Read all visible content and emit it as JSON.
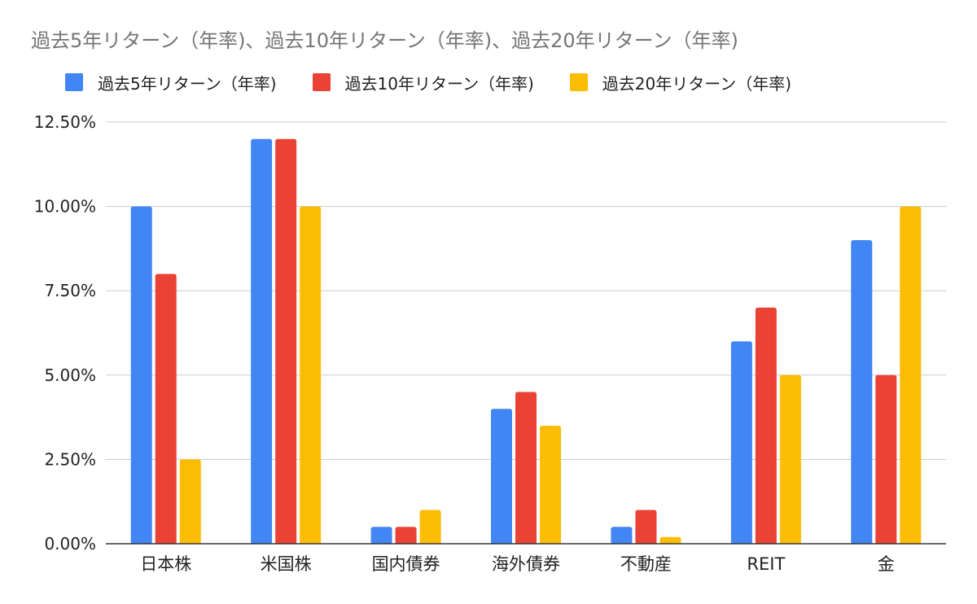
{
  "chart_data": {
    "type": "bar",
    "title": "過去5年リターン（年率)、過去10年リターン（年率)、過去20年リターン（年率)",
    "categories": [
      "日本株",
      "米国株",
      "国内債券",
      "海外債券",
      "不動産",
      "REIT",
      "金"
    ],
    "series": [
      {
        "name": "過去5年リターン（年率)",
        "color": "#4285F4",
        "values": [
          10.0,
          12.0,
          0.5,
          4.0,
          0.5,
          6.0,
          9.0
        ]
      },
      {
        "name": "過去10年リターン（年率)",
        "color": "#EA4335",
        "values": [
          8.0,
          12.0,
          0.5,
          4.5,
          1.0,
          7.0,
          5.0
        ]
      },
      {
        "name": "過去20年リターン（年率)",
        "color": "#FBBC04",
        "values": [
          2.5,
          10.0,
          1.0,
          3.5,
          0.2,
          5.0,
          10.0
        ]
      }
    ],
    "ylim": [
      0,
      12.5
    ],
    "yticks": [
      "0.00%",
      "2.50%",
      "5.00%",
      "7.50%",
      "10.00%",
      "12.50%"
    ],
    "ytick_values": [
      0,
      2.5,
      5,
      7.5,
      10,
      12.5
    ],
    "grid": true,
    "legend_position": "top-left"
  }
}
